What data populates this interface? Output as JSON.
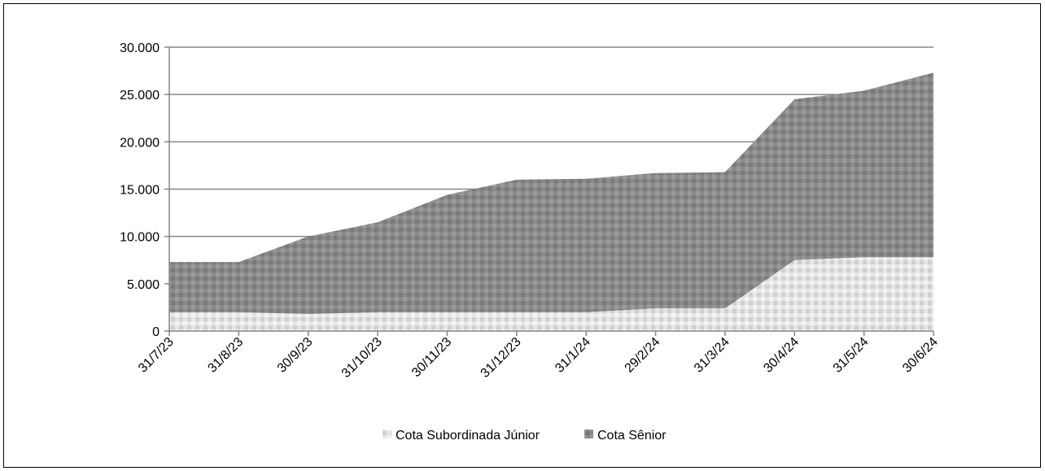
{
  "chart_data": {
    "type": "area",
    "stacked": true,
    "categories": [
      "31/7/23",
      "31/8/23",
      "30/9/23",
      "31/10/23",
      "30/11/23",
      "31/12/23",
      "31/1/24",
      "29/2/24",
      "31/3/24",
      "30/4/24",
      "31/5/24",
      "30/6/24"
    ],
    "series": [
      {
        "name": "Cota Subordinada Júnior",
        "values": [
          2000,
          2000,
          1800,
          2000,
          2000,
          2000,
          2000,
          2400,
          2400,
          7500,
          7800,
          7800
        ],
        "color": "#d4d4d4"
      },
      {
        "name": "Cota Sênior",
        "values": [
          5300,
          5300,
          8200,
          9500,
          12400,
          14000,
          14100,
          14300,
          14400,
          17000,
          17600,
          19500
        ],
        "color": "#8c8c8c"
      }
    ],
    "ylim": [
      0,
      30000
    ],
    "yticks": [
      "0",
      "5.000",
      "10.000",
      "15.000",
      "20.000",
      "25.000",
      "30.000"
    ],
    "ytick_values": [
      0,
      5000,
      10000,
      15000,
      20000,
      25000,
      30000
    ],
    "grid": true,
    "legend_position": "bottom",
    "title": "",
    "xlabel": "",
    "ylabel": ""
  }
}
